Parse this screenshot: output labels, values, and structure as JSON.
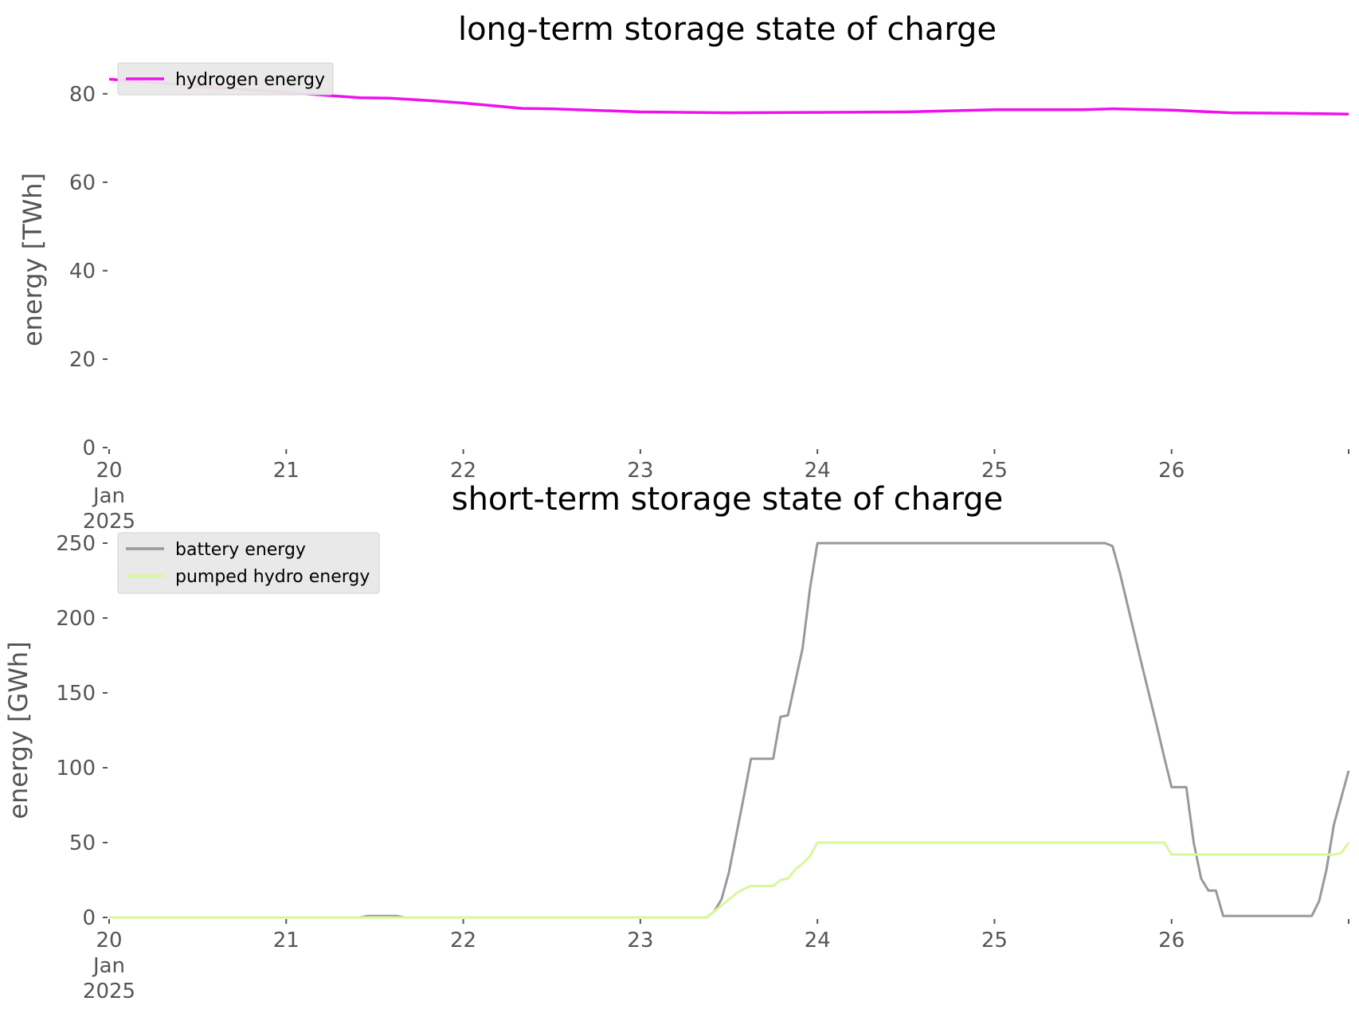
{
  "chart_data": [
    {
      "type": "line",
      "title": "long-term storage state of charge",
      "ylabel": "energy [TWh]",
      "xlabel": "",
      "ylim": [
        0,
        85
      ],
      "yticks": [
        0,
        20,
        40,
        60,
        80
      ],
      "xlim": [
        "2025-01-20",
        "2025-01-27"
      ],
      "xticks": [
        "2025-01-20",
        "2025-01-21",
        "2025-01-22",
        "2025-01-23",
        "2025-01-24",
        "2025-01-25",
        "2025-01-26",
        "2025-01-27"
      ],
      "xtick_labels": [
        "20\nJan\n2025",
        "21",
        "22",
        "23",
        "24",
        "25",
        "26",
        ""
      ],
      "grid": false,
      "legend": "upper-left",
      "series": [
        {
          "name": "hydrogen energy",
          "color": "#ee11ee",
          "points": [
            [
              "2025-01-20T00:00",
              83.3
            ],
            [
              "2025-01-20T12:00",
              81.7
            ],
            [
              "2025-01-21T00:00",
              80.3
            ],
            [
              "2025-01-21T10:00",
              79.1
            ],
            [
              "2025-01-21T14:00",
              79.0
            ],
            [
              "2025-01-21T20:00",
              78.4
            ],
            [
              "2025-01-22T00:00",
              77.9
            ],
            [
              "2025-01-22T08:00",
              76.7
            ],
            [
              "2025-01-22T12:00",
              76.6
            ],
            [
              "2025-01-23T00:00",
              75.9
            ],
            [
              "2025-01-23T12:00",
              75.7
            ],
            [
              "2025-01-24T00:00",
              75.8
            ],
            [
              "2025-01-24T12:00",
              75.9
            ],
            [
              "2025-01-25T00:00",
              76.4
            ],
            [
              "2025-01-25T12:00",
              76.4
            ],
            [
              "2025-01-25T16:00",
              76.6
            ],
            [
              "2025-01-26T00:00",
              76.3
            ],
            [
              "2025-01-26T08:00",
              75.7
            ],
            [
              "2025-01-26T16:00",
              75.6
            ],
            [
              "2025-01-27T00:00",
              75.4
            ]
          ]
        }
      ]
    },
    {
      "type": "line",
      "title": "short-term storage state of charge",
      "ylabel": "energy [GWh]",
      "xlabel": "",
      "ylim": [
        0,
        250
      ],
      "yticks": [
        0,
        50,
        100,
        150,
        200,
        250
      ],
      "xlim": [
        "2025-01-20",
        "2025-01-27"
      ],
      "xticks": [
        "2025-01-20",
        "2025-01-21",
        "2025-01-22",
        "2025-01-23",
        "2025-01-24",
        "2025-01-25",
        "2025-01-26",
        "2025-01-27"
      ],
      "xtick_labels": [
        "20\nJan\n2025",
        "21",
        "22",
        "23",
        "24",
        "25",
        "26",
        ""
      ],
      "grid": false,
      "legend": "upper-left",
      "series": [
        {
          "name": "battery energy",
          "color": "#999999",
          "points": [
            [
              "2025-01-20T00:00",
              0
            ],
            [
              "2025-01-21T10:00",
              0
            ],
            [
              "2025-01-21T11:00",
              1
            ],
            [
              "2025-01-21T15:00",
              1
            ],
            [
              "2025-01-21T16:00",
              0
            ],
            [
              "2025-01-23T09:00",
              0
            ],
            [
              "2025-01-23T10:00",
              4
            ],
            [
              "2025-01-23T11:00",
              12
            ],
            [
              "2025-01-23T12:00",
              30
            ],
            [
              "2025-01-23T14:00",
              80
            ],
            [
              "2025-01-23T15:00",
              106
            ],
            [
              "2025-01-23T18:00",
              106
            ],
            [
              "2025-01-23T19:00",
              134
            ],
            [
              "2025-01-23T20:00",
              135
            ],
            [
              "2025-01-23T22:00",
              180
            ],
            [
              "2025-01-23T23:00",
              220
            ],
            [
              "2025-01-24T00:00",
              250
            ],
            [
              "2025-01-25T15:00",
              250
            ],
            [
              "2025-01-25T16:00",
              248
            ],
            [
              "2025-01-25T17:00",
              230
            ],
            [
              "2025-01-25T20:00",
              168
            ],
            [
              "2025-01-25T22:00",
              128
            ],
            [
              "2025-01-25T23:00",
              107
            ],
            [
              "2025-01-26T00:00",
              87
            ],
            [
              "2025-01-26T01:00",
              87
            ],
            [
              "2025-01-26T02:00",
              87
            ],
            [
              "2025-01-26T03:00",
              50
            ],
            [
              "2025-01-26T04:00",
              26
            ],
            [
              "2025-01-26T05:00",
              18
            ],
            [
              "2025-01-26T06:00",
              18
            ],
            [
              "2025-01-26T07:00",
              1
            ],
            [
              "2025-01-26T19:00",
              1
            ],
            [
              "2025-01-26T20:00",
              11
            ],
            [
              "2025-01-26T21:00",
              32
            ],
            [
              "2025-01-26T22:00",
              62
            ],
            [
              "2025-01-27T00:00",
              98
            ]
          ]
        },
        {
          "name": "pumped hydro energy",
          "color": "#d9f79a",
          "points": [
            [
              "2025-01-20T00:00",
              0
            ],
            [
              "2025-01-23T09:00",
              0
            ],
            [
              "2025-01-23T11:00",
              8
            ],
            [
              "2025-01-23T13:00",
              16
            ],
            [
              "2025-01-23T14:00",
              19
            ],
            [
              "2025-01-23T15:00",
              21
            ],
            [
              "2025-01-23T18:00",
              21
            ],
            [
              "2025-01-23T19:00",
              25
            ],
            [
              "2025-01-23T20:00",
              26
            ],
            [
              "2025-01-23T21:00",
              32
            ],
            [
              "2025-01-23T22:00",
              36
            ],
            [
              "2025-01-23T23:00",
              41
            ],
            [
              "2025-01-24T00:00",
              50
            ],
            [
              "2025-01-25T23:00",
              50
            ],
            [
              "2025-01-26T00:00",
              42
            ],
            [
              "2025-01-26T22:00",
              42
            ],
            [
              "2025-01-26T23:00",
              43
            ],
            [
              "2025-01-27T00:00",
              50
            ]
          ]
        }
      ]
    }
  ]
}
